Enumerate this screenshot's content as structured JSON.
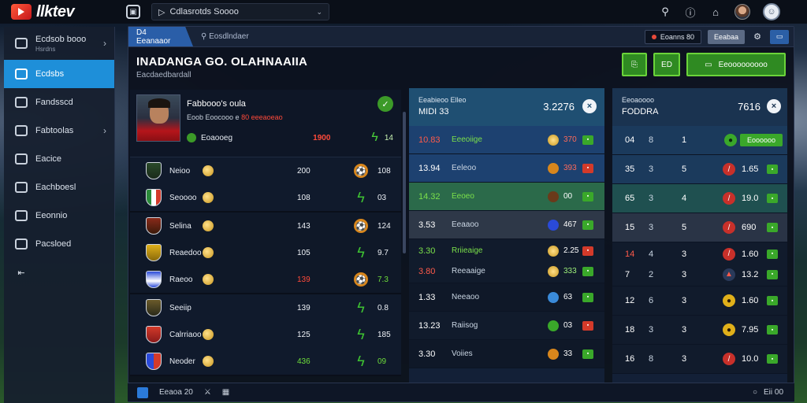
{
  "app": {
    "logo_text": "llktev"
  },
  "topbar": {
    "search_value": "Cdlasrotds Soooo"
  },
  "sidebar": {
    "items": [
      {
        "label": "Ecdsob booo",
        "sub": "Hsrdns"
      },
      {
        "label": "Ecdsbs"
      },
      {
        "label": "Fandsscd"
      },
      {
        "label": "Fabtoolas"
      },
      {
        "label": "Eacice"
      },
      {
        "label": "Eachboesl"
      },
      {
        "label": "Eeonnio"
      },
      {
        "label": "Pacsloed"
      }
    ]
  },
  "breadcrumb": {
    "tab": "D4 Eeanaaor",
    "second": "Eosdlndaer"
  },
  "header_right": {
    "pill1": "Eoanns 80",
    "pill2": "Eeabaa"
  },
  "title": {
    "main": "INADANGA GO. OLAHNAAIIA",
    "sub": "Eacdaedbardall"
  },
  "actions": {
    "btn2": "ED",
    "btn3": "Eeooooooooo"
  },
  "feature": {
    "name": "Fabbooo's oula",
    "meta": "Eoob Eoocooo e",
    "meta_red": "80 eeeaoeao",
    "row_label": "Eoaooeg",
    "row_value": "1900",
    "row_value2": "14"
  },
  "left_rows": [
    {
      "name": "Neioo",
      "v1": "200",
      "v2": "108"
    },
    {
      "name": "Seoooo",
      "v1": "108",
      "v2": "03"
    },
    {
      "name": "Selina",
      "v1": "143",
      "v2": "124"
    },
    {
      "name": "Reaedoo",
      "v1": "105",
      "v2": "9.7"
    },
    {
      "name": "Raeoo",
      "v1": "139",
      "v2": "7.3"
    },
    {
      "name": "Seeiip",
      "v1": "139",
      "v2": "0.8"
    },
    {
      "name": "Calrriaoo",
      "v1": "125",
      "v2": "185"
    },
    {
      "name": "Neoder",
      "v1": "436",
      "v2": "09"
    }
  ],
  "mid_panel": {
    "head_label": "Eeabieoo Elleo",
    "head_sub": "MIDI 33",
    "head_value": "3.2276",
    "rows": [
      {
        "odd": "10.83",
        "label": "Eeeoiige",
        "val": "370"
      },
      {
        "odd": "13.94",
        "label": "Eeleoo",
        "val": "393"
      },
      {
        "odd": "14.32",
        "label": "Eeoeo",
        "val": "00"
      },
      {
        "odd": "3.53",
        "label": "Eeaaoo",
        "val": "467"
      },
      {
        "odd": "3.30",
        "label": "Rriieaige",
        "val": "2.25"
      },
      {
        "odd": "3.80",
        "label": "Reeaaige",
        "val": "333"
      },
      {
        "odd": "1.33",
        "label": "Neeaoo",
        "val": "63"
      },
      {
        "odd": "13.23",
        "label": "Raiisog",
        "val": "03"
      },
      {
        "odd": "3.30",
        "label": "Voiies",
        "val": "33"
      }
    ]
  },
  "right_panel": {
    "head_label": "Eeoaoooo",
    "head_sub": "FODDRA",
    "head_value": "7616",
    "rows": [
      {
        "a": "04",
        "b": "8",
        "c": "1",
        "val": "Eoooooo"
      },
      {
        "a": "35",
        "b": "3",
        "c": "5",
        "val": "1.65"
      },
      {
        "a": "65",
        "b": "3",
        "c": "4",
        "val": "19.0"
      },
      {
        "a": "15",
        "b": "3",
        "c": "5",
        "val": "690"
      },
      {
        "a": "14",
        "b": "4",
        "c": "3",
        "val": "1.60"
      },
      {
        "a": "7",
        "b": "2",
        "c": "3",
        "val": "13.2"
      },
      {
        "a": "12",
        "b": "6",
        "c": "3",
        "val": "1.60"
      },
      {
        "a": "18",
        "b": "3",
        "c": "3",
        "val": "7.95"
      },
      {
        "a": "16",
        "b": "8",
        "c": "3",
        "val": "10.0"
      }
    ]
  },
  "footer": {
    "left1": "Eeaoa 20",
    "right": "Eii 00"
  },
  "colors": {
    "accent_blue": "#1e8fd9",
    "accent_green": "#3aa82a",
    "danger_red": "#ff4a3a"
  }
}
